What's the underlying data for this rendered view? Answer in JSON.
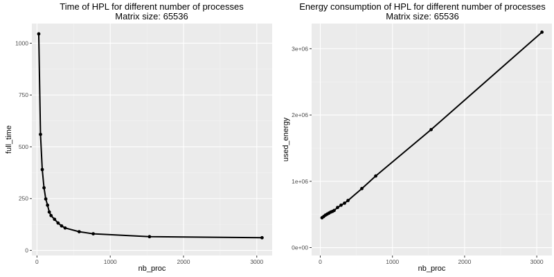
{
  "chart_data": [
    {
      "type": "line",
      "title": "Time of HPL for different number of processes",
      "subtitle": "Matrix size: 65536",
      "xlabel": "nb_proc",
      "ylabel": "full_time",
      "xlim": [
        -70,
        3210
      ],
      "ylim": [
        -25,
        1095
      ],
      "xticks": [
        0,
        1000,
        2000,
        3000
      ],
      "xtick_labels": [
        "0",
        "1000",
        "2000",
        "3000"
      ],
      "yticks": [
        0,
        250,
        500,
        750,
        1000
      ],
      "ytick_labels": [
        "0",
        "250",
        "500",
        "750",
        "1000"
      ],
      "grid": true,
      "series": [
        {
          "x": [
            24,
            48,
            72,
            96,
            120,
            144,
            168,
            192,
            240,
            288,
            336,
            384,
            576,
            768,
            1536,
            3072
          ],
          "y": [
            1045,
            560,
            390,
            302,
            248,
            218,
            185,
            168,
            150,
            132,
            118,
            108,
            90,
            80,
            66,
            61
          ]
        }
      ]
    },
    {
      "type": "line",
      "title": "Energy consumption of HPL for different number of processes",
      "subtitle": "Matrix size: 65536",
      "xlabel": "nb_proc",
      "ylabel": "used_energy",
      "xlim": [
        -120,
        3210
      ],
      "ylim": [
        -120000,
        3380000
      ],
      "xticks": [
        0,
        1000,
        2000,
        3000
      ],
      "xtick_labels": [
        "0",
        "1000",
        "2000",
        "3000"
      ],
      "yticks": [
        0,
        1000000,
        2000000,
        3000000
      ],
      "ytick_labels": [
        "0e+00",
        "1e+06",
        "2e+06",
        "3e+06"
      ],
      "grid": true,
      "series": [
        {
          "x": [
            24,
            48,
            72,
            96,
            120,
            144,
            168,
            192,
            240,
            288,
            336,
            384,
            576,
            768,
            1536,
            3072
          ],
          "y": [
            450000,
            470000,
            490000,
            505000,
            520000,
            535000,
            545000,
            560000,
            605000,
            640000,
            670000,
            710000,
            890000,
            1080000,
            1780000,
            3250000
          ]
        }
      ]
    }
  ]
}
